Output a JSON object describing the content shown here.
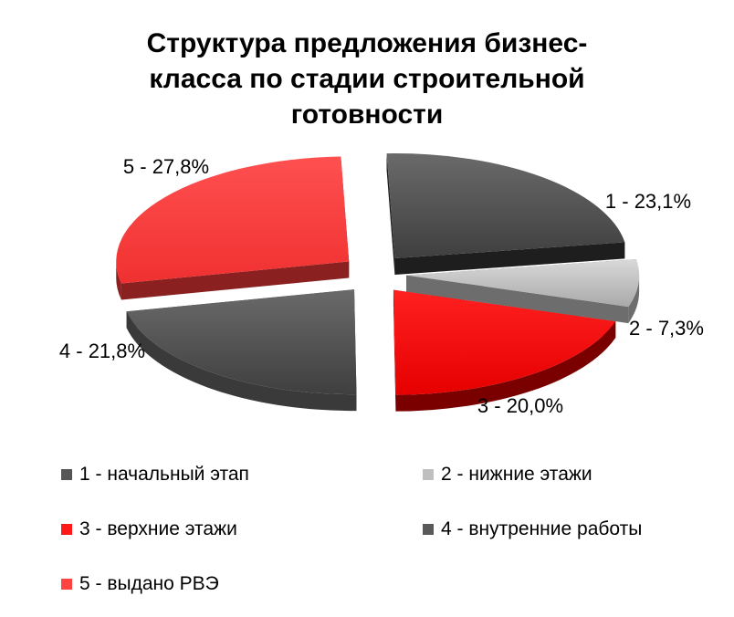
{
  "title_lines": [
    "Структура предложения бизнес-",
    "класса по стадии строительной",
    "готовности"
  ],
  "chart_data": {
    "type": "pie",
    "title": "Структура предложения бизнес-класса по стадии строительной готовности",
    "slices": [
      {
        "id": 1,
        "value": 23.1,
        "label": "1 - 23,1%",
        "legend": "1 - начальный этап",
        "color": "#555555"
      },
      {
        "id": 2,
        "value": 7.3,
        "label": "2 - 7,3%",
        "legend": "2 - нижние этажи",
        "color": "#bfbfbf"
      },
      {
        "id": 3,
        "value": 20.0,
        "label": "3 - 20,0%",
        "legend": "3 - верхние этажи",
        "color": "#ff1a1a"
      },
      {
        "id": 4,
        "value": 21.8,
        "label": "4 - 21,8%",
        "legend": "4 - внутренние работы",
        "color": "#595959"
      },
      {
        "id": 5,
        "value": 27.8,
        "label": "5 - 27,8%",
        "legend": "5 - выдано РВЭ",
        "color": "#ff4242"
      }
    ],
    "exploded": true,
    "three_d": true,
    "legend_position": "bottom"
  }
}
